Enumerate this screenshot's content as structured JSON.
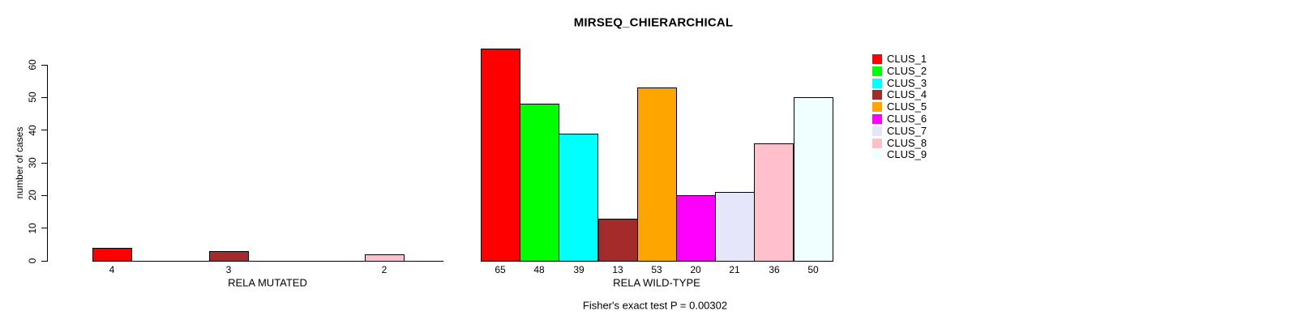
{
  "chart_data": {
    "type": "bar",
    "title": "MIRSEQ_CHIERARCHICAL",
    "ylabel": "number of cases",
    "ylim": [
      0,
      65
    ],
    "yticks": [
      0,
      10,
      20,
      30,
      40,
      50,
      60
    ],
    "grid": false,
    "background_color": "#FFFFFF",
    "text_color": "#000000",
    "bar_border_color": "#000000",
    "legend_position": "right",
    "clusters": [
      "CLUS_1",
      "CLUS_2",
      "CLUS_3",
      "CLUS_4",
      "CLUS_5",
      "CLUS_6",
      "CLUS_7",
      "CLUS_8",
      "CLUS_9"
    ],
    "colors": [
      "#FF0000",
      "#00FF00",
      "#00FFFF",
      "#A52A2A",
      "#FFA500",
      "#FF00FF",
      "#E6E6FA",
      "#FFC0CB",
      "#F0FFFF"
    ],
    "panels": [
      {
        "xlabel": "RELA MUTATED",
        "values": [
          4,
          0,
          0,
          3,
          0,
          0,
          0,
          2,
          0
        ],
        "bar_labels": [
          "4",
          "",
          "",
          "3",
          "",
          "",
          "",
          "2",
          ""
        ]
      },
      {
        "xlabel": "RELA WILD-TYPE",
        "values": [
          65,
          48,
          39,
          13,
          53,
          20,
          21,
          36,
          50
        ],
        "bar_labels": [
          "65",
          "48",
          "39",
          "13",
          "53",
          "20",
          "21",
          "36",
          "50"
        ]
      }
    ],
    "annotation": "Fisher's exact test P = 0.00302"
  }
}
